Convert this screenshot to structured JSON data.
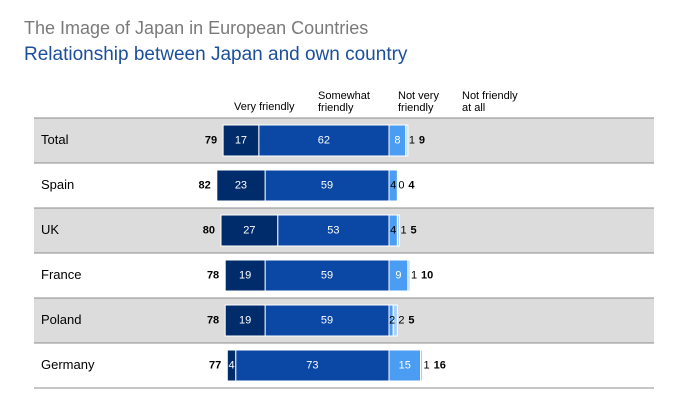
{
  "title": "The Image of Japan in European Countries",
  "subtitle": "Relationship between Japan and own country",
  "chart_data": {
    "type": "bar",
    "orientation": "horizontal",
    "stacked": "diverging",
    "categories": [
      "Total",
      "Spain",
      "UK",
      "France",
      "Poland",
      "Germany"
    ],
    "column_headers": [
      "Very friendly",
      "Somewhat\nfriendly",
      "Not very\nfriendly",
      "Not friendly\nat all"
    ],
    "series": [
      {
        "name": "Very friendly",
        "values": [
          17,
          23,
          27,
          19,
          19,
          4
        ],
        "labels": [
          "17",
          "23",
          "27",
          "19",
          "19",
          "4"
        ],
        "color": "#002c6b"
      },
      {
        "name": "Somewhat friendly",
        "values": [
          62,
          59,
          53,
          59,
          59,
          73
        ],
        "labels": [
          "62",
          "59",
          "53",
          "59",
          "59",
          "73"
        ],
        "color": "#0b47a5"
      },
      {
        "name": "Not very friendly",
        "values": [
          8,
          4,
          4,
          9,
          2,
          15
        ],
        "labels": [
          "8",
          "4",
          "4",
          "9",
          "2",
          "15"
        ],
        "color": "#4a9df2"
      },
      {
        "name": "Not friendly at all",
        "values": [
          1,
          0,
          1,
          1,
          2,
          1
        ],
        "labels": [
          "1",
          "0",
          "1",
          "1",
          "2",
          "1"
        ],
        "color": "#a8d2fb"
      }
    ],
    "friendly_totals": [
      "79",
      "82",
      "80",
      "78",
      "78",
      "77"
    ],
    "unfriendly_totals": [
      "9",
      "4",
      "5",
      "10",
      "5",
      "16"
    ],
    "row_shading": [
      "#dcdcdc",
      "#ffffff",
      "#dcdcdc",
      "#ffffff",
      "#dcdcdc",
      "#ffffff"
    ],
    "grid": false,
    "legend": "top"
  }
}
